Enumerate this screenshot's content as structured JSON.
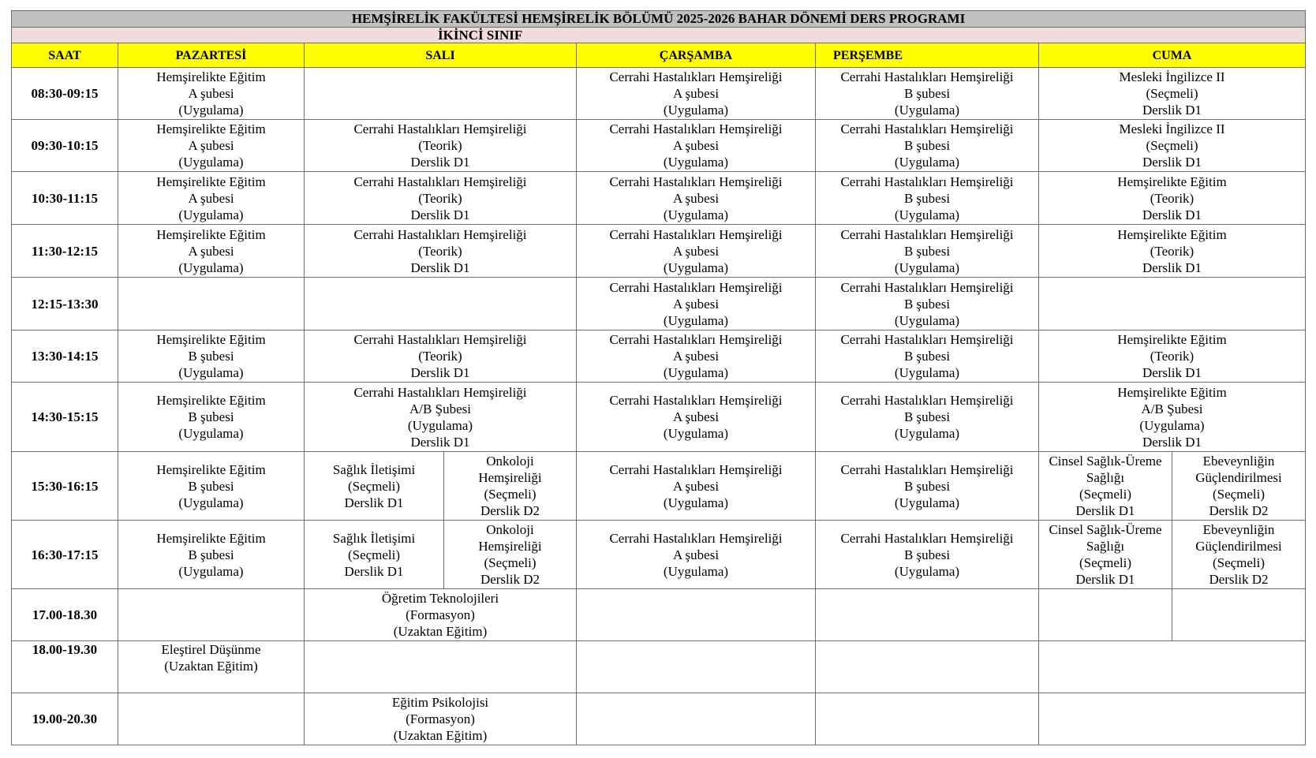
{
  "title": "HEMŞİRELİK FAKÜLTESİ HEMŞİRELİK BÖLÜMÜ 2025-2026 BAHAR DÖNEMİ DERS PROGRAMI",
  "subtitle": "İKİNCİ SINIF",
  "colors": {
    "title_bg": "#c0c0c0",
    "subtitle_bg": "#f2dcdb",
    "header_bg": "#ffff00"
  },
  "headers": [
    "SAAT",
    "PAZARTESİ",
    "SALI",
    "ÇARŞAMBA",
    "PERŞEMBE",
    "CUMA"
  ],
  "rows": [
    {
      "time": "08:30-09:15",
      "cells": [
        {
          "text": "Hemşirelikte Eğitim\nA şubesi\n(Uygulama)",
          "span": 1
        },
        {
          "text": "",
          "span": 2
        },
        {
          "text": "Cerrahi Hastalıkları Hemşireliği\nA şubesi\n(Uygulama)",
          "span": 1
        },
        {
          "text": "Cerrahi Hastalıkları Hemşireliği\nB şubesi\n(Uygulama)",
          "span": 1
        },
        {
          "text": "Mesleki İngilizce II\n(Seçmeli)\nDerslik D1",
          "span": 2
        }
      ]
    },
    {
      "time": "09:30-10:15",
      "cells": [
        {
          "text": "Hemşirelikte Eğitim\nA şubesi\n(Uygulama)",
          "span": 1
        },
        {
          "text": "Cerrahi Hastalıkları Hemşireliği\n(Teorik)\nDerslik D1",
          "span": 2
        },
        {
          "text": "Cerrahi Hastalıkları Hemşireliği\nA şubesi\n(Uygulama)",
          "span": 1
        },
        {
          "text": "Cerrahi Hastalıkları Hemşireliği\nB şubesi\n(Uygulama)",
          "span": 1
        },
        {
          "text": "Mesleki İngilizce II\n(Seçmeli)\nDerslik D1",
          "span": 2
        }
      ]
    },
    {
      "time": "10:30-11:15",
      "cells": [
        {
          "text": "Hemşirelikte Eğitim\nA şubesi\n(Uygulama)",
          "span": 1
        },
        {
          "text": "Cerrahi Hastalıkları Hemşireliği\n(Teorik)\nDerslik D1",
          "span": 2
        },
        {
          "text": "Cerrahi Hastalıkları Hemşireliği\nA şubesi\n(Uygulama)",
          "span": 1
        },
        {
          "text": "Cerrahi Hastalıkları Hemşireliği\nB şubesi\n(Uygulama)",
          "span": 1
        },
        {
          "text": "Hemşirelikte Eğitim\n(Teorik)\nDerslik D1",
          "span": 2
        }
      ]
    },
    {
      "time": "11:30-12:15",
      "cells": [
        {
          "text": "Hemşirelikte Eğitim\nA şubesi\n(Uygulama)",
          "span": 1
        },
        {
          "text": "Cerrahi Hastalıkları Hemşireliği\n(Teorik)\nDerslik D1",
          "span": 2
        },
        {
          "text": "Cerrahi Hastalıkları Hemşireliği\nA şubesi\n(Uygulama)",
          "span": 1
        },
        {
          "text": "Cerrahi Hastalıkları Hemşireliği\nB şubesi\n(Uygulama)",
          "span": 1
        },
        {
          "text": "Hemşirelikte Eğitim\n(Teorik)\nDerslik D1",
          "span": 2
        }
      ]
    },
    {
      "time": "12:15-13:30",
      "cells": [
        {
          "text": "",
          "span": 1
        },
        {
          "text": "",
          "span": 2
        },
        {
          "text": "Cerrahi Hastalıkları Hemşireliği\nA şubesi\n(Uygulama)",
          "span": 1
        },
        {
          "text": "Cerrahi Hastalıkları Hemşireliği\nB şubesi\n(Uygulama)",
          "span": 1
        },
        {
          "text": "",
          "span": 2
        }
      ]
    },
    {
      "time": "13:30-14:15",
      "cells": [
        {
          "text": "Hemşirelikte Eğitim\nB şubesi\n(Uygulama)",
          "span": 1
        },
        {
          "text": "Cerrahi Hastalıkları Hemşireliği\n(Teorik)\nDerslik D1",
          "span": 2
        },
        {
          "text": "Cerrahi Hastalıkları Hemşireliği\nA şubesi\n(Uygulama)",
          "span": 1
        },
        {
          "text": "Cerrahi Hastalıkları Hemşireliği\nB şubesi\n(Uygulama)",
          "span": 1
        },
        {
          "text": "Hemşirelikte Eğitim\n(Teorik)\nDerslik D1",
          "span": 2
        }
      ]
    },
    {
      "time": "14:30-15:15",
      "cells": [
        {
          "text": "Hemşirelikte Eğitim\nB şubesi\n(Uygulama)\n ",
          "span": 1
        },
        {
          "text": "Cerrahi Hastalıkları Hemşireliği\nA/B Şubesi\n(Uygulama)\nDerslik D1",
          "span": 2
        },
        {
          "text": "Cerrahi Hastalıkları Hemşireliği\nA şubesi\n(Uygulama)",
          "span": 1
        },
        {
          "text": "Cerrahi Hastalıkları Hemşireliği\nB şubesi\n(Uygulama)",
          "span": 1
        },
        {
          "text": "Hemşirelikte Eğitim\nA/B Şubesi\n(Uygulama)\nDerslik D1",
          "span": 2
        }
      ]
    },
    {
      "time": "15:30-16:15",
      "cells": [
        {
          "text": "Hemşirelikte Eğitim\nB şubesi\n(Uygulama)\n ",
          "span": 1
        },
        {
          "text": "Sağlık İletişimi\n(Seçmeli)\nDerslik D1",
          "span": 1
        },
        {
          "text": "Onkoloji\nHemşireliği\n(Seçmeli)\nDerslik D2",
          "span": 1
        },
        {
          "text": "Cerrahi Hastalıkları Hemşireliği\nA şubesi\n(Uygulama)",
          "span": 1
        },
        {
          "text": "Cerrahi Hastalıkları Hemşireliği\nB şubesi\n(Uygulama)",
          "span": 1
        },
        {
          "text": "Cinsel Sağlık-Üreme\nSağlığı\n(Seçmeli)\nDerslik D1",
          "span": 1
        },
        {
          "text": "Ebeveynliğin\nGüçlendirilmesi\n(Seçmeli)\nDerslik D2",
          "span": 1
        }
      ]
    },
    {
      "time": "16:30-17:15",
      "cells": [
        {
          "text": "Hemşirelikte Eğitim\nB şubesi\n(Uygulama)\n ",
          "span": 1
        },
        {
          "text": "Sağlık İletişimi\n(Seçmeli)\nDerslik D1",
          "span": 1
        },
        {
          "text": "Onkoloji\nHemşireliği\n(Seçmeli)\nDerslik D2",
          "span": 1
        },
        {
          "text": "Cerrahi Hastalıkları Hemşireliği\nA şubesi\n(Uygulama)",
          "span": 1
        },
        {
          "text": "Cerrahi Hastalıkları Hemşireliği\nB şubesi\n(Uygulama)",
          "span": 1
        },
        {
          "text": "Cinsel Sağlık-Üreme\nSağlığı\n(Seçmeli)\nDerslik D1",
          "span": 1
        },
        {
          "text": "Ebeveynliğin\nGüçlendirilmesi\n(Seçmeli)\nDerslik D2",
          "span": 1
        }
      ]
    },
    {
      "time": "17.00-18.30",
      "cells": [
        {
          "text": "",
          "span": 1
        },
        {
          "text": "Öğretim Teknolojileri\n(Formasyon)\n(Uzaktan Eğitim)",
          "span": 2
        },
        {
          "text": "",
          "span": 1
        },
        {
          "text": "",
          "span": 1
        },
        {
          "text": "",
          "span": 1
        },
        {
          "text": "",
          "span": 1
        }
      ]
    },
    {
      "time": "18.00-19.30",
      "cells": [
        {
          "text": "Eleştirel Düşünme\n(Uzaktan Eğitim)",
          "span": 1
        },
        {
          "text": "",
          "span": 2
        },
        {
          "text": "",
          "span": 1
        },
        {
          "text": "",
          "span": 1
        },
        {
          "text": "",
          "span": 2
        }
      ]
    },
    {
      "time": "19.00-20.30",
      "cells": [
        {
          "text": "",
          "span": 1
        },
        {
          "text": "Eğitim Psikolojisi\n(Formasyon)\n(Uzaktan Eğitim)",
          "span": 2
        },
        {
          "text": "",
          "span": 1
        },
        {
          "text": "",
          "span": 1
        },
        {
          "text": "",
          "span": 2
        }
      ]
    }
  ]
}
